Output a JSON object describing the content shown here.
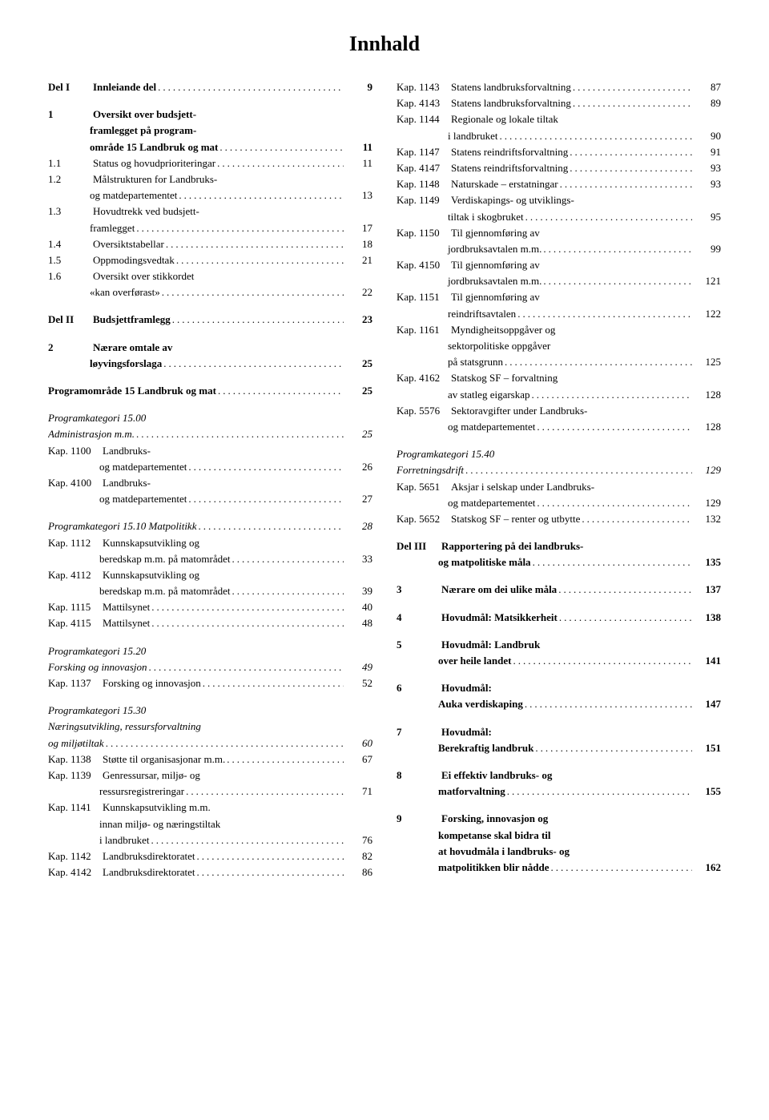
{
  "title": "Innhald",
  "left": [
    {
      "label": "Del I",
      "text": "Innleiande del",
      "page": "9",
      "bold": true
    },
    {
      "gap": true
    },
    {
      "label": "1",
      "text": "Oversikt over budsjett-",
      "bold": true,
      "nopage": true
    },
    {
      "cont": true,
      "text": "framlegget på program-",
      "bold": true,
      "nopage": true
    },
    {
      "cont": true,
      "text": "område 15 Landbruk og mat",
      "page": "11",
      "bold": true
    },
    {
      "label": "1.1",
      "text": "Status og hovudprioriteringar",
      "page": "11"
    },
    {
      "label": "1.2",
      "text": "Målstrukturen for Landbruks-",
      "nopage": true
    },
    {
      "cont": true,
      "text": "og matdepartementet",
      "page": "13"
    },
    {
      "label": "1.3",
      "text": "Hovudtrekk ved budsjett-",
      "nopage": true
    },
    {
      "cont": true,
      "text": "framlegget",
      "page": "17"
    },
    {
      "label": "1.4",
      "text": "Oversiktstabellar",
      "page": "18"
    },
    {
      "label": "1.5",
      "text": "Oppmodingsvedtak",
      "page": "21"
    },
    {
      "label": "1.6",
      "text": "Oversikt over stikkordet",
      "nopage": true
    },
    {
      "cont": true,
      "text": "«kan overførast»",
      "page": "22"
    },
    {
      "gap": true
    },
    {
      "label": "Del II",
      "text": "Budsjettframlegg",
      "page": "23",
      "bold": true
    },
    {
      "gap": true
    },
    {
      "label": "2",
      "text": "Nærare omtale av",
      "bold": true,
      "nopage": true
    },
    {
      "cont": true,
      "text": "løyvingsforslaga",
      "page": "25",
      "bold": true
    },
    {
      "gap": true
    },
    {
      "label": "",
      "text": "Programområde 15 Landbruk og mat",
      "page": "25",
      "bold": true,
      "nolabel": true
    },
    {
      "gap": true
    },
    {
      "label": "",
      "text": "Programkategori 15.00",
      "italic": true,
      "nopage": true,
      "nolabel": true
    },
    {
      "label": "",
      "text": "Administrasjon m.m.",
      "page": "25",
      "italic": true,
      "nolabel": true
    },
    {
      "label": "Kap. 1100",
      "text": "Landbruks-",
      "nopage": true
    },
    {
      "cont": true,
      "text": "og matdepartementet",
      "page": "26",
      "cont2": true
    },
    {
      "label": "Kap. 4100",
      "text": "Landbruks-",
      "nopage": true
    },
    {
      "cont": true,
      "text": "og matdepartementet",
      "page": "27",
      "cont2": true
    },
    {
      "gap": true
    },
    {
      "label": "",
      "text": "Programkategori 15.10 Matpolitikk",
      "page": "28",
      "italic": true,
      "nolabel": true
    },
    {
      "label": "Kap. 1112",
      "text": "Kunnskapsutvikling og",
      "nopage": true
    },
    {
      "cont": true,
      "text": "beredskap m.m. på matområdet",
      "page": "33",
      "cont2": true
    },
    {
      "label": "Kap. 4112",
      "text": "Kunnskapsutvikling og",
      "nopage": true
    },
    {
      "cont": true,
      "text": "beredskap m.m. på matområdet",
      "page": "39",
      "cont2": true
    },
    {
      "label": "Kap. 1115",
      "text": "Mattilsynet",
      "page": "40"
    },
    {
      "label": "Kap. 4115",
      "text": "Mattilsynet",
      "page": "48"
    },
    {
      "gap": true
    },
    {
      "label": "",
      "text": "Programkategori 15.20",
      "italic": true,
      "nopage": true,
      "nolabel": true
    },
    {
      "label": "",
      "text": "Forsking og innovasjon",
      "page": "49",
      "italic": true,
      "nolabel": true
    },
    {
      "label": "Kap. 1137",
      "text": "Forsking og innovasjon",
      "page": "52"
    },
    {
      "gap": true
    },
    {
      "label": "",
      "text": "Programkategori 15.30",
      "italic": true,
      "nopage": true,
      "nolabel": true
    },
    {
      "label": "",
      "text": "Næringsutvikling, ressursforvaltning",
      "italic": true,
      "nopage": true,
      "nolabel": true
    },
    {
      "label": "",
      "text": "og miljøtiltak",
      "page": "60",
      "italic": true,
      "nolabel": true
    },
    {
      "label": "Kap. 1138",
      "text": "Støtte til organisasjonar m.m.",
      "page": "67"
    },
    {
      "label": "Kap. 1139",
      "text": "Genressursar, miljø- og",
      "nopage": true
    },
    {
      "cont": true,
      "text": "ressursregistreringar",
      "page": "71",
      "cont2": true
    },
    {
      "label": "Kap. 1141",
      "text": "Kunnskapsutvikling m.m.",
      "nopage": true
    },
    {
      "cont": true,
      "text": "innan miljø- og næringstiltak",
      "nopage": true,
      "cont2": true
    },
    {
      "cont": true,
      "text": "i landbruket",
      "page": "76",
      "cont2": true
    },
    {
      "label": "Kap. 1142",
      "text": "Landbruksdirektoratet",
      "page": "82"
    },
    {
      "label": "Kap. 4142",
      "text": "Landbruksdirektoratet",
      "page": "86"
    }
  ],
  "right": [
    {
      "label": "Kap. 1143",
      "text": "Statens landbruksforvaltning",
      "page": "87"
    },
    {
      "label": "Kap. 4143",
      "text": "Statens landbruksforvaltning",
      "page": "89"
    },
    {
      "label": "Kap. 1144",
      "text": "Regionale og lokale tiltak",
      "nopage": true
    },
    {
      "cont": true,
      "text": "i landbruket",
      "page": "90",
      "cont2": true
    },
    {
      "label": "Kap. 1147",
      "text": "Statens reindriftsforvaltning",
      "page": "91"
    },
    {
      "label": "Kap. 4147",
      "text": "Statens reindriftsforvaltning",
      "page": "93"
    },
    {
      "label": "Kap. 1148",
      "text": "Naturskade – erstatningar",
      "page": "93"
    },
    {
      "label": "Kap. 1149",
      "text": "Verdiskapings- og utviklings-",
      "nopage": true
    },
    {
      "cont": true,
      "text": "tiltak i skogbruket",
      "page": "95",
      "cont2": true
    },
    {
      "label": "Kap. 1150",
      "text": "Til gjennomføring av",
      "nopage": true
    },
    {
      "cont": true,
      "text": "jordbruksavtalen m.m.",
      "page": "99",
      "cont2": true
    },
    {
      "label": "Kap. 4150",
      "text": "Til gjennomføring av",
      "nopage": true
    },
    {
      "cont": true,
      "text": "jordbruksavtalen m.m.",
      "page": "121",
      "cont2": true
    },
    {
      "label": "Kap. 1151",
      "text": "Til gjennomføring av",
      "nopage": true
    },
    {
      "cont": true,
      "text": "reindriftsavtalen",
      "page": "122",
      "cont2": true
    },
    {
      "label": "Kap. 1161",
      "text": "Myndigheitsoppgåver og",
      "nopage": true
    },
    {
      "cont": true,
      "text": "sektorpolitiske oppgåver",
      "nopage": true,
      "cont2": true
    },
    {
      "cont": true,
      "text": "på statsgrunn",
      "page": "125",
      "cont2": true
    },
    {
      "label": "Kap. 4162",
      "text": "Statskog SF – forvaltning",
      "nopage": true
    },
    {
      "cont": true,
      "text": "av statleg eigarskap",
      "page": "128",
      "cont2": true
    },
    {
      "label": "Kap. 5576",
      "text": "Sektoravgifter under Landbruks-",
      "nopage": true
    },
    {
      "cont": true,
      "text": "og matdepartementet",
      "page": "128",
      "cont2": true
    },
    {
      "gap": true
    },
    {
      "label": "",
      "text": "Programkategori 15.40",
      "italic": true,
      "nopage": true,
      "nolabel": true
    },
    {
      "label": "",
      "text": "Forretningsdrift",
      "page": "129",
      "italic": true,
      "nolabel": true
    },
    {
      "label": "Kap. 5651",
      "text": "Aksjar i selskap under Landbruks-",
      "nopage": true
    },
    {
      "cont": true,
      "text": "og matdepartementet",
      "page": "129",
      "cont2": true
    },
    {
      "label": "Kap. 5652",
      "text": "Statskog SF – renter og utbytte",
      "page": "132"
    },
    {
      "gap": true
    },
    {
      "label": "Del III",
      "text": "Rapportering på dei landbruks-",
      "bold": true,
      "nopage": true
    },
    {
      "cont": true,
      "text": "og matpolitiske måla",
      "page": "135",
      "bold": true
    },
    {
      "gap": true
    },
    {
      "label": "3",
      "text": "Nærare om dei ulike måla",
      "page": "137",
      "bold": true
    },
    {
      "gap": true
    },
    {
      "label": "4",
      "text": "Hovudmål: Matsikkerheit",
      "page": "138",
      "bold": true
    },
    {
      "gap": true
    },
    {
      "label": "5",
      "text": "Hovudmål: Landbruk",
      "bold": true,
      "nopage": true
    },
    {
      "cont": true,
      "text": "over heile landet",
      "page": "141",
      "bold": true
    },
    {
      "gap": true
    },
    {
      "label": "6",
      "text": "Hovudmål:",
      "bold": true,
      "nopage": true
    },
    {
      "cont": true,
      "text": "Auka verdiskaping",
      "page": "147",
      "bold": true
    },
    {
      "gap": true
    },
    {
      "label": "7",
      "text": "Hovudmål:",
      "bold": true,
      "nopage": true
    },
    {
      "cont": true,
      "text": "Berekraftig landbruk",
      "page": "151",
      "bold": true
    },
    {
      "gap": true
    },
    {
      "label": "8",
      "text": "Ei effektiv landbruks- og",
      "bold": true,
      "nopage": true
    },
    {
      "cont": true,
      "text": "matforvaltning",
      "page": "155",
      "bold": true
    },
    {
      "gap": true
    },
    {
      "label": "9",
      "text": "Forsking, innovasjon og",
      "bold": true,
      "nopage": true
    },
    {
      "cont": true,
      "text": "kompetanse skal bidra til",
      "bold": true,
      "nopage": true
    },
    {
      "cont": true,
      "text": "at hovudmåla i landbruks- og",
      "bold": true,
      "nopage": true
    },
    {
      "cont": true,
      "text": "matpolitikken blir nådde",
      "page": "162",
      "bold": true
    }
  ]
}
